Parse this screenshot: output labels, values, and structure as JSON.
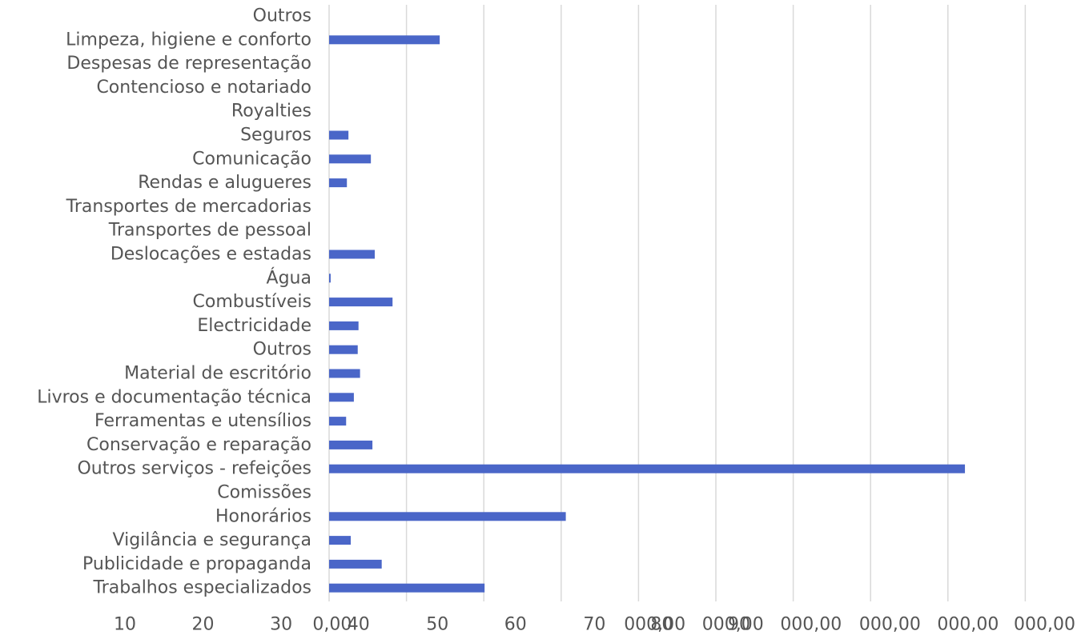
{
  "chart_data": {
    "type": "bar",
    "orientation": "horizontal",
    "title": "",
    "xlabel": "",
    "ylabel": "",
    "xlim": [
      0,
      90
    ],
    "grid": true,
    "legend": "none",
    "bar_color": "#4a66c8",
    "categories": [
      "Outros",
      "Limpeza, higiene e conforto",
      "Despesas de representação",
      "Contencioso e notariado",
      "Royalties",
      "Seguros",
      "Comunicação",
      "Rendas e alugueres",
      "Transportes de mercadorias",
      "Transportes de pessoal",
      "Deslocações e estadas",
      "Água",
      "Combustíveis",
      "Electricidade",
      "Outros",
      "Material de escritório",
      "Livros e documentação técnica",
      "Ferramentas e utensílios",
      "Conservação e reparação",
      "Outros serviços - refeições",
      "Comissões",
      "Honorários",
      "Vigilância e segurança",
      "Publicidade e propaganda",
      "Trabalhos especializados"
    ],
    "values": [
      0,
      14.3,
      0,
      0,
      0,
      2.5,
      5.4,
      2.3,
      0,
      0,
      5.9,
      0.2,
      8.2,
      3.8,
      3.7,
      4.0,
      3.2,
      2.2,
      5.6,
      82.2,
      0,
      30.6,
      2.8,
      6.8,
      20.1
    ],
    "tick_labels": [
      {
        "text": "10",
        "v": -26.4
      },
      {
        "text": "20",
        "v": -16.3
      },
      {
        "text": "30",
        "v": -6.2
      },
      {
        "text": "0,00",
        "v": 0.4
      },
      {
        "text": "40",
        "v": 3.8
      },
      {
        "text": "50",
        "v": 14.0
      },
      {
        "text": "60",
        "v": 24.1
      },
      {
        "text": "70",
        "v": 34.3
      },
      {
        "text": "000,00",
        "v": 42.1
      },
      {
        "text": "80",
        "v": 43.0
      },
      {
        "text": "000,00",
        "v": 52.2
      },
      {
        "text": "90",
        "v": 53.0
      },
      {
        "text": "000,00",
        "v": 62.3
      },
      {
        "text": "000,00",
        "v": 72.5
      },
      {
        "text": "000,00",
        "v": 82.6
      },
      {
        "text": "000,00",
        "v": 92.5
      }
    ]
  }
}
